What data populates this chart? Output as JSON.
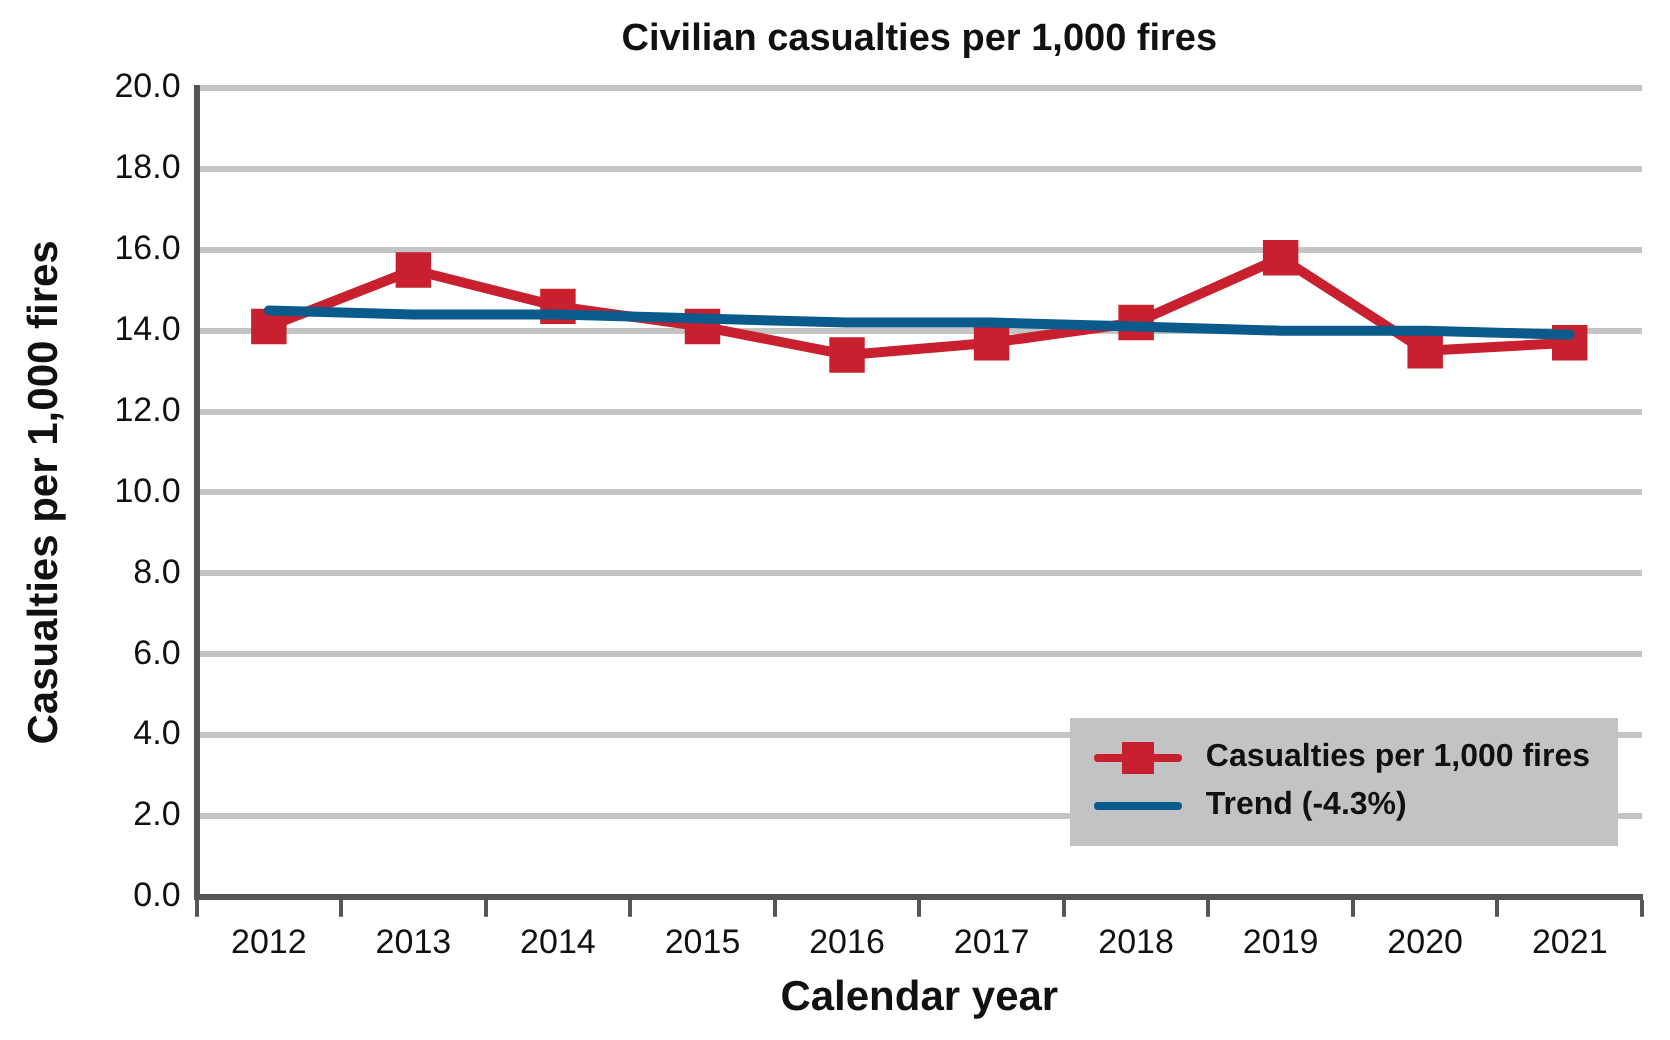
{
  "chart_data": {
    "type": "line",
    "title": "Civilian casualties per 1,000 fires",
    "xlabel": "Calendar year",
    "ylabel": "Casualties per 1,000 fires",
    "categories": [
      "2012",
      "2013",
      "2014",
      "2015",
      "2016",
      "2017",
      "2018",
      "2019",
      "2020",
      "2021"
    ],
    "series": [
      {
        "name": "Trend (-4.3%)",
        "color": "#0b5a8c",
        "type": "line",
        "marker": "none",
        "values": [
          14.5,
          14.4,
          14.4,
          14.3,
          14.2,
          14.2,
          14.1,
          14.0,
          14.0,
          13.9
        ]
      },
      {
        "name": "Casualties per 1,000 fires",
        "color": "#c8202f",
        "marker": "square",
        "values": [
          14.1,
          15.5,
          14.6,
          14.1,
          13.4,
          13.7,
          14.2,
          15.8,
          13.5,
          13.7
        ]
      }
    ],
    "ylim": [
      0,
      20
    ],
    "yticks": [
      {
        "value": 0,
        "label": "0.0"
      },
      {
        "value": 2,
        "label": "2.0"
      },
      {
        "value": 4,
        "label": "4.0"
      },
      {
        "value": 6,
        "label": "6.0"
      },
      {
        "value": 8,
        "label": "8.0"
      },
      {
        "value": 10,
        "label": "10.0"
      },
      {
        "value": 12,
        "label": "12.0"
      },
      {
        "value": 14,
        "label": "14.0"
      },
      {
        "value": 16,
        "label": "16.0"
      },
      {
        "value": 18,
        "label": "18.0"
      },
      {
        "value": 20,
        "label": "20.0"
      }
    ],
    "grid": "y",
    "legend": "bottom right"
  }
}
